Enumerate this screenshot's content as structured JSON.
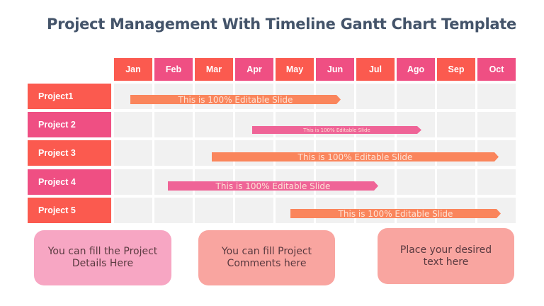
{
  "title": "Project Management With Timeline Gantt Chart Template",
  "colors": {
    "red": "#fb5a4f",
    "pink": "#ef4f83",
    "bar_orange": "#fa855c",
    "bar_pink": "#ef6497",
    "cell": "#f1f1f1",
    "note_pink": "#f7a6c3",
    "note_salmon": "#f9a5a0",
    "title": "#44546a"
  },
  "chart_data": {
    "type": "gantt",
    "title": "Project Management With Timeline Gantt Chart Template",
    "months": [
      "Jan",
      "Feb",
      "Mar",
      "Apr",
      "May",
      "Jun",
      "Jul",
      "Ago",
      "Sep",
      "Oct"
    ],
    "tasks": [
      {
        "name": "Project1",
        "start": 0.4,
        "end": 5.6,
        "label": "This is 100% Editable Slide",
        "color": "#fa855c"
      },
      {
        "name": "Project 2",
        "start": 3.4,
        "end": 7.6,
        "label": "This is 100%  Editable Slide",
        "color": "#ef6497"
      },
      {
        "name": "Project 3",
        "start": 2.4,
        "end": 9.5,
        "label": "This is 100% Editable Slide",
        "color": "#fa855c"
      },
      {
        "name": "Project 4",
        "start": 1.4,
        "end": 6.6,
        "label": "This is 100% Editable Slide",
        "color": "#ef6497"
      },
      {
        "name": "Project 5",
        "start": 4.4,
        "end": 9.6,
        "label": "This is 100% Editable Slide",
        "color": "#fa855c"
      }
    ]
  },
  "months": [
    "Jan",
    "Feb",
    "Mar",
    "Apr",
    "May",
    "Jun",
    "Jul",
    "Ago",
    "Sep",
    "Oct"
  ],
  "projects": [
    "Project1",
    "Project 2",
    "Project 3",
    "Project 4",
    "Project 5"
  ],
  "bars": [
    "This is 100% Editable Slide",
    "This is 100%  Editable Slide",
    "This is 100% Editable Slide",
    "This is 100% Editable Slide",
    "This is 100% Editable Slide"
  ],
  "notes": [
    "You can fill the Project Details Here",
    "You can fill Project Comments here",
    "Place your desired text here"
  ]
}
